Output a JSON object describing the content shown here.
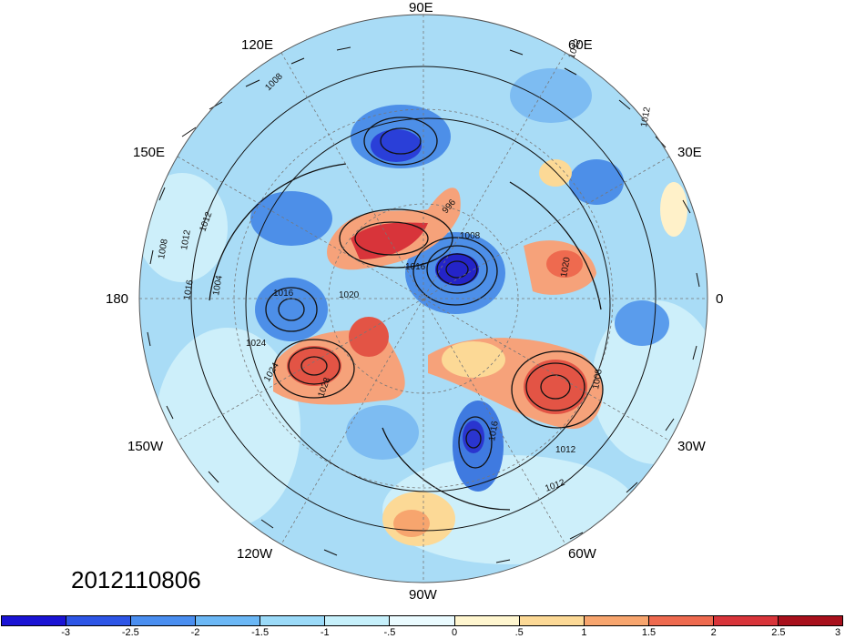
{
  "map": {
    "projection": "north polar stereographic",
    "timestamp": "2012110806",
    "longitude_labels": {
      "lon_90e": "90E",
      "lon_60e": "60E",
      "lon_120e": "120E",
      "lon_30e": "30E",
      "lon_150e": "150E",
      "lon_180": "180",
      "lon_0": "0",
      "lon_150w": "150W",
      "lon_30w": "30W",
      "lon_120w": "120W",
      "lon_60w": "60W",
      "lon_90w": "90W"
    },
    "contour_labels": [
      "1012",
      "1008",
      "1012",
      "1008",
      "1012",
      "1016",
      "1004",
      "1016",
      "1024",
      "1024",
      "1028",
      "996",
      "1008",
      "1016",
      "1020",
      "1020",
      "1008",
      "1016",
      "1012",
      "1012",
      "1012"
    ],
    "shading_variable_levels": [
      "-3",
      "-2.5",
      "-2",
      "-1.5",
      "-1",
      "-.5",
      "0",
      ".5",
      "1",
      "1.5",
      "2",
      "2.5",
      "3"
    ],
    "colorbar_colors": [
      "#1a13d4",
      "#2d55e6",
      "#4a8ef0",
      "#6bb7f5",
      "#9bdaf8",
      "#c6f0fb",
      "#eafbff",
      "#fff6cf",
      "#fcd996",
      "#f7a56e",
      "#ee6a4f",
      "#d8343a",
      "#a8101c"
    ]
  }
}
